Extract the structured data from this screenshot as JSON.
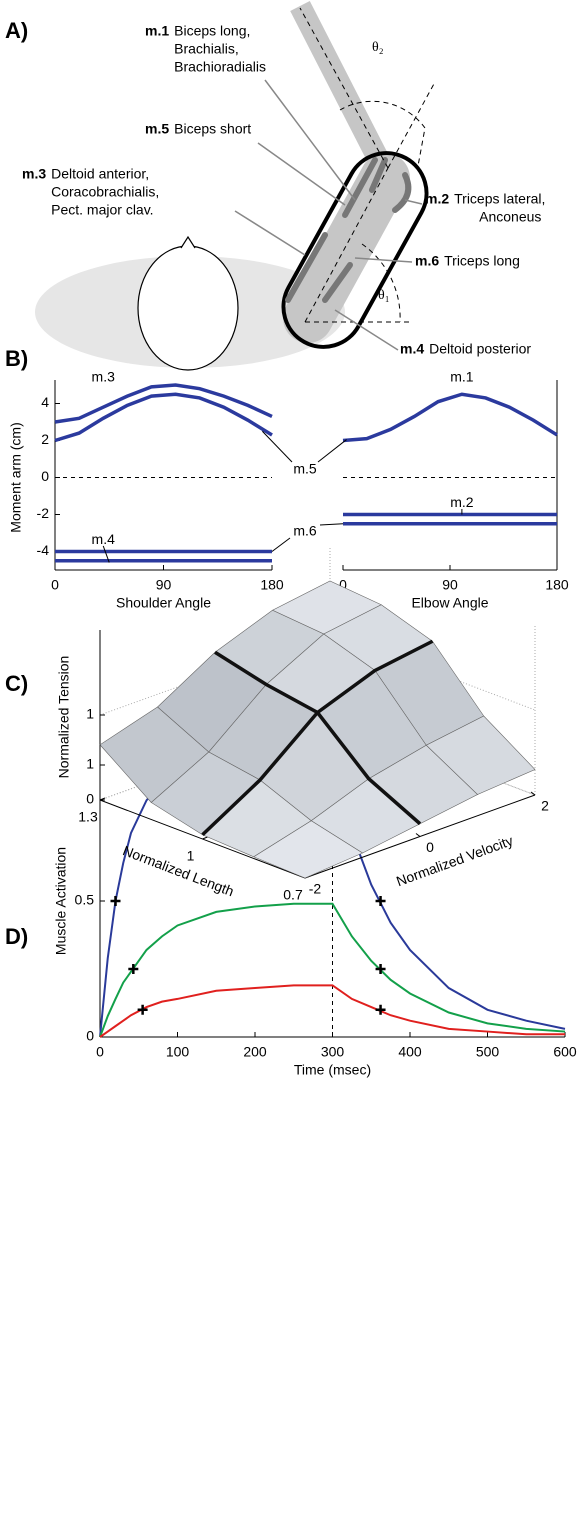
{
  "panel_labels": [
    "A)",
    "B)",
    "C)",
    "D)"
  ],
  "diagram": {
    "muscles": [
      {
        "id": "m.1",
        "lines": [
          "Biceps long,",
          "Brachialis,",
          "Brachioradialis"
        ]
      },
      {
        "id": "m.5",
        "lines": [
          "Biceps short"
        ]
      },
      {
        "id": "m.3",
        "lines": [
          "Deltoid anterior,",
          "Coracobrachialis,",
          "Pect. major clav."
        ]
      },
      {
        "id": "m.2",
        "lines": [
          "Triceps lateral,",
          "Anconeus"
        ]
      },
      {
        "id": "m.6",
        "lines": [
          "Triceps long"
        ]
      },
      {
        "id": "m.4",
        "lines": [
          "Deltoid posterior"
        ]
      }
    ],
    "angles": [
      "θ₂",
      "θ₁"
    ]
  },
  "chart_data": [
    {
      "type": "line",
      "xlabel": "Shoulder Angle",
      "ylabel": "Moment arm (cm)",
      "x": [
        0,
        20,
        40,
        60,
        80,
        100,
        120,
        140,
        160,
        180
      ],
      "xlim": [
        0,
        180
      ],
      "xticks": [
        0,
        90,
        180
      ],
      "ylim": [
        -5,
        5
      ],
      "yticks": [
        -4,
        -2,
        0,
        2,
        4
      ],
      "hline": 0,
      "series": [
        {
          "name": "m.3",
          "color": "#2b3a9e",
          "values": [
            3.0,
            3.2,
            3.8,
            4.4,
            4.9,
            5.0,
            4.8,
            4.4,
            3.9,
            3.3
          ]
        },
        {
          "name": "m.5",
          "color": "#2b3a9e",
          "values": [
            2.0,
            2.4,
            3.2,
            3.9,
            4.4,
            4.5,
            4.3,
            3.8,
            3.1,
            2.3
          ]
        },
        {
          "name": "m.4",
          "color": "#2b3a9e",
          "values": [
            -4.5,
            -4.5,
            -4.5,
            -4.5,
            -4.5,
            -4.5,
            -4.5,
            -4.5,
            -4.5,
            -4.5
          ]
        },
        {
          "name": "m.6",
          "color": "#2b3a9e",
          "values": [
            -4,
            -4,
            -4,
            -4,
            -4,
            -4,
            -4,
            -4,
            -4,
            -4
          ]
        }
      ]
    },
    {
      "type": "line",
      "xlabel": "Elbow Angle",
      "x": [
        0,
        20,
        40,
        60,
        80,
        100,
        120,
        140,
        160,
        180
      ],
      "xlim": [
        0,
        180
      ],
      "xticks": [
        0,
        90,
        180
      ],
      "ylim": [
        -5,
        5
      ],
      "yticks": [],
      "hline": 0,
      "series": [
        {
          "name": "m.1",
          "color": "#2b3a9e",
          "values": [
            2.0,
            2.1,
            2.6,
            3.3,
            4.1,
            4.5,
            4.3,
            3.8,
            3.1,
            2.3
          ]
        },
        {
          "name": "m.2",
          "color": "#2b3a9e",
          "values": [
            -2,
            -2,
            -2,
            -2,
            -2,
            -2,
            -2,
            -2,
            -2,
            -2
          ]
        },
        {
          "color": "#2b3a9e",
          "values": [
            -2.5,
            -2.5,
            -2.5,
            -2.5,
            -2.5,
            -2.5,
            -2.5,
            -2.5,
            -2.5,
            -2.5
          ]
        }
      ]
    },
    {
      "type": "surface",
      "zlabel": "Normalized Tension",
      "xlabel": "Normalized Length",
      "ylabel": "Normalized Velocity",
      "length": [
        0.7,
        0.85,
        1,
        1.15,
        1.3
      ],
      "velocity": [
        -2,
        -1,
        0,
        1,
        2
      ],
      "tension": [
        [
          0.0,
          0.05,
          0.15,
          0.25,
          0.3
        ],
        [
          0.02,
          0.2,
          0.45,
          0.6,
          0.7
        ],
        [
          0.05,
          0.45,
          1.0,
          1.25,
          1.35
        ],
        [
          0.2,
          0.55,
          1.1,
          1.45,
          1.55
        ],
        [
          0.65,
          0.85,
          1.25,
          1.5,
          1.6
        ]
      ],
      "xlim": [
        0.7,
        1.3
      ],
      "xticks": [
        0.7,
        1,
        1.3
      ],
      "ylim": [
        -2,
        2
      ],
      "yticks": [
        -2,
        0,
        2
      ],
      "zlim": [
        0,
        2
      ],
      "zticks": [
        0,
        1
      ],
      "highlight_length": 1,
      "highlight_velocity": 0
    },
    {
      "type": "line",
      "xlabel": "Time (msec)",
      "ylabel": "Muscle Activation",
      "x": [
        0,
        10,
        20,
        30,
        40,
        60,
        80,
        100,
        150,
        200,
        250,
        300,
        325,
        350,
        375,
        400,
        450,
        500,
        550,
        600
      ],
      "xlim": [
        0,
        600
      ],
      "xticks": [
        0,
        100,
        200,
        300,
        400,
        500,
        600
      ],
      "ylim": [
        0,
        1
      ],
      "yticks": [
        0,
        0.5,
        1
      ],
      "vline": 300,
      "series": [
        {
          "color": "#2a3a9a",
          "values": [
            0,
            0.29,
            0.5,
            0.64,
            0.75,
            0.87,
            0.94,
            0.97,
            0.99,
            1.0,
            1.0,
            1.0,
            0.75,
            0.56,
            0.42,
            0.32,
            0.18,
            0.1,
            0.06,
            0.03
          ]
        },
        {
          "color": "#13a04a",
          "values": [
            0,
            0.077,
            0.14,
            0.2,
            0.24,
            0.32,
            0.37,
            0.41,
            0.46,
            0.48,
            0.49,
            0.49,
            0.37,
            0.28,
            0.21,
            0.16,
            0.09,
            0.05,
            0.03,
            0.02
          ]
        },
        {
          "color": "#e0201e",
          "values": [
            0,
            0.02,
            0.04,
            0.06,
            0.08,
            0.11,
            0.13,
            0.14,
            0.17,
            0.18,
            0.19,
            0.19,
            0.14,
            0.11,
            0.08,
            0.06,
            0.03,
            0.02,
            0.01,
            0.01
          ]
        }
      ],
      "markers": {
        "x": [
          20,
          43,
          55,
          362,
          362,
          362
        ],
        "values": [
          0.5,
          0.25,
          0.1,
          0.5,
          0.25,
          0.1
        ]
      }
    }
  ]
}
